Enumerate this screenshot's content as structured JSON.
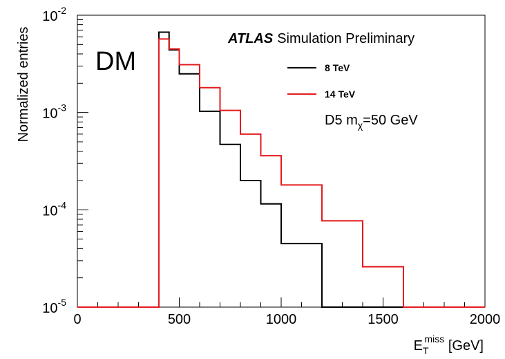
{
  "chart_data": {
    "type": "line",
    "title": "",
    "xlabel": {
      "base": "E",
      "sub": "T",
      "sup": "miss",
      "unit": " [GeV]"
    },
    "ylabel": "Normalized entries",
    "xlim": [
      0,
      2000
    ],
    "ylim": [
      1e-05,
      0.01
    ],
    "yscale": "log",
    "x_ticks": [
      "0",
      "500",
      "1000",
      "1500",
      "2000"
    ],
    "x_tick_values": [
      0,
      500,
      1000,
      1500,
      2000
    ],
    "y_ticks": [
      {
        "value": 0.01,
        "base": "10",
        "exp": "-2"
      },
      {
        "value": 0.001,
        "base": "10",
        "exp": "-3"
      },
      {
        "value": 0.0001,
        "base": "10",
        "exp": "-4"
      },
      {
        "value": 1e-05,
        "base": "10",
        "exp": "-5"
      }
    ],
    "grid": false,
    "legend_position": "top-right",
    "series": [
      {
        "name": "8 TeV",
        "color": "#000000",
        "bins": [
          {
            "x_low": 0,
            "x_high": 400,
            "y": 1e-05
          },
          {
            "x_low": 400,
            "x_high": 450,
            "y": 0.0067
          },
          {
            "x_low": 450,
            "x_high": 500,
            "y": 0.0044
          },
          {
            "x_low": 500,
            "x_high": 600,
            "y": 0.0025
          },
          {
            "x_low": 600,
            "x_high": 700,
            "y": 0.00103
          },
          {
            "x_low": 700,
            "x_high": 800,
            "y": 0.00047
          },
          {
            "x_low": 800,
            "x_high": 900,
            "y": 0.0002
          },
          {
            "x_low": 900,
            "x_high": 1000,
            "y": 0.000115
          },
          {
            "x_low": 1000,
            "x_high": 1200,
            "y": 4.5e-05
          },
          {
            "x_low": 1200,
            "x_high": 2000,
            "y": 1e-05
          }
        ]
      },
      {
        "name": "14 TeV",
        "color": "#e41a1c",
        "bins": [
          {
            "x_low": 0,
            "x_high": 400,
            "y": 1e-05
          },
          {
            "x_low": 400,
            "x_high": 450,
            "y": 0.0057
          },
          {
            "x_low": 450,
            "x_high": 500,
            "y": 0.0045
          },
          {
            "x_low": 500,
            "x_high": 600,
            "y": 0.0031
          },
          {
            "x_low": 600,
            "x_high": 700,
            "y": 0.0018
          },
          {
            "x_low": 700,
            "x_high": 800,
            "y": 0.00105
          },
          {
            "x_low": 800,
            "x_high": 900,
            "y": 0.0006
          },
          {
            "x_low": 900,
            "x_high": 1000,
            "y": 0.00036
          },
          {
            "x_low": 1000,
            "x_high": 1200,
            "y": 0.00018
          },
          {
            "x_low": 1200,
            "x_high": 1400,
            "y": 7.7e-05
          },
          {
            "x_low": 1400,
            "x_high": 1600,
            "y": 2.6e-05
          },
          {
            "x_low": 1600,
            "x_high": 2000,
            "y": 1e-05
          }
        ]
      }
    ],
    "annotations": {
      "dm_label": "DM",
      "atlas": "ATLAS",
      "atlas_rest": "Simulation Preliminary",
      "model": {
        "prefix": "D5 m",
        "sub": "χ",
        "suffix": "=50 GeV"
      }
    }
  }
}
